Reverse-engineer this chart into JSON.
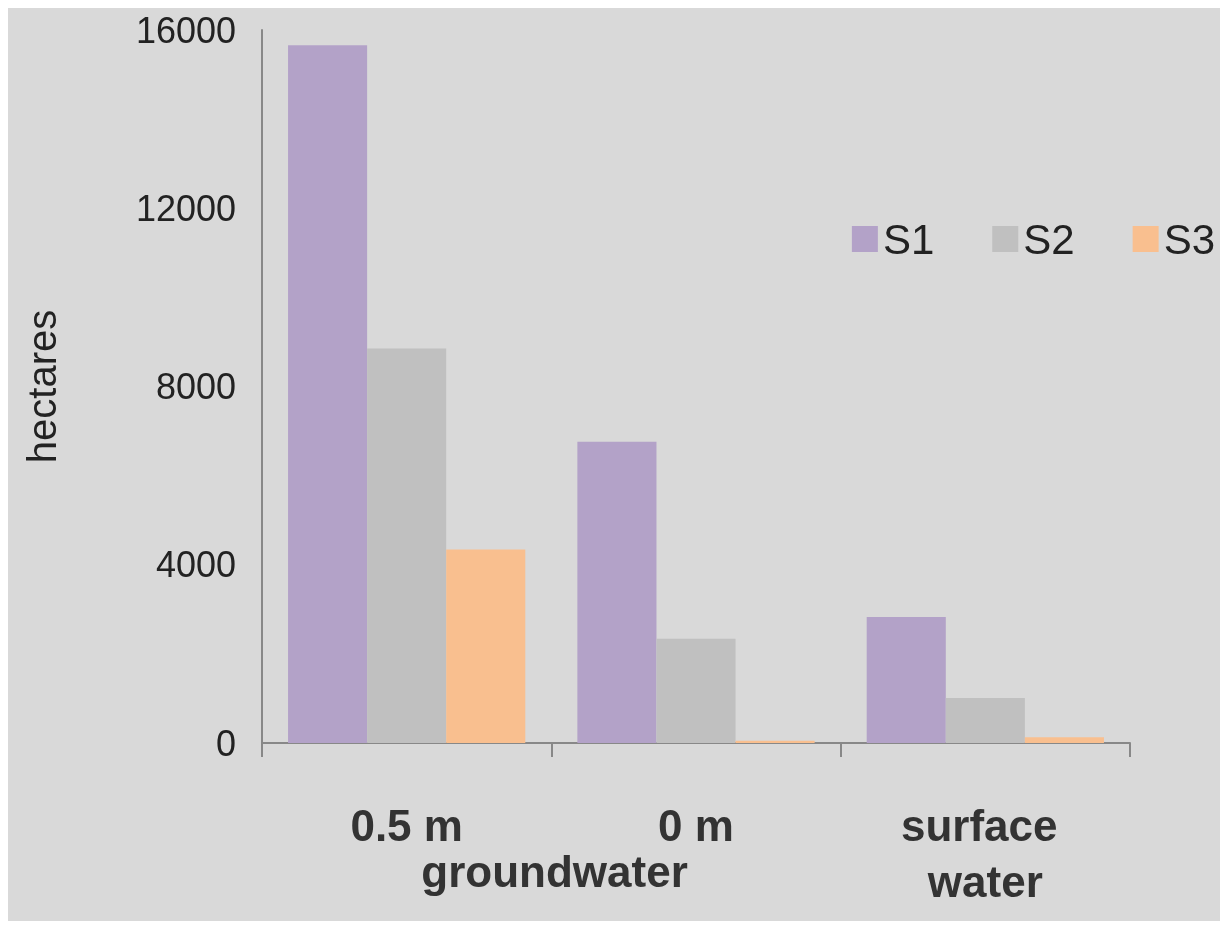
{
  "chart_data": {
    "type": "bar",
    "ylabel": "hectares",
    "categories": [
      "0.5 m",
      "0 m",
      "surface water"
    ],
    "series": [
      {
        "name": "S1",
        "color": "#b3a2c8",
        "values": [
          15660,
          6760,
          2830
        ]
      },
      {
        "name": "S2",
        "color": "#c0c0c0",
        "values": [
          8850,
          2340,
          1010
        ]
      },
      {
        "name": "S3",
        "color": "#f9bf8f",
        "values": [
          4340,
          50,
          130
        ]
      }
    ],
    "ylim": [
      0,
      16000
    ],
    "yticks": [
      0,
      4000,
      8000,
      12000,
      16000
    ],
    "grid": false,
    "legend": "top right",
    "annotations": [
      "groundwater"
    ]
  }
}
